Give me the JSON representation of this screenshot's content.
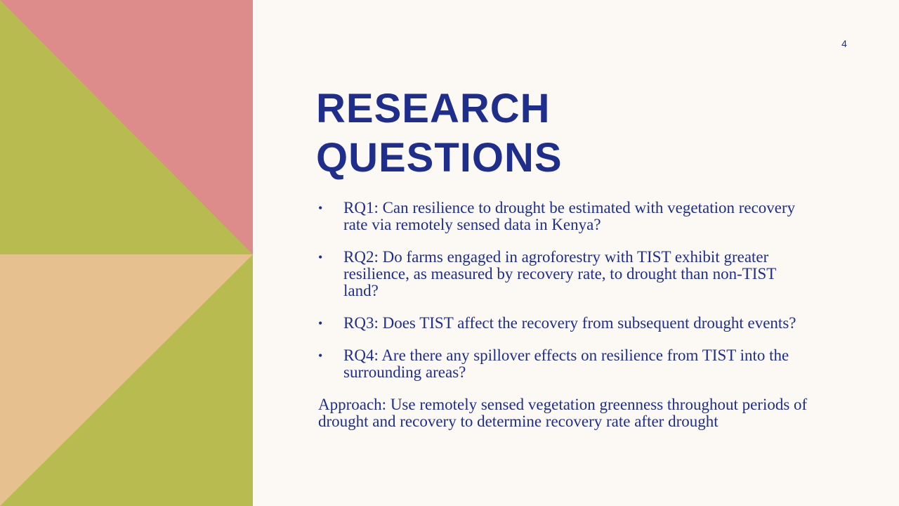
{
  "slide": {
    "number": "4",
    "title_lines": [
      "RESEARCH",
      "QUESTIONS"
    ],
    "questions": [
      "RQ1: Can resilience to drought be estimated with vegetation recovery rate via remotely sensed data in Kenya?",
      "RQ2: Do farms engaged in agroforestry with TIST exhibit greater resilience, as measured by recovery rate, to drought than non-TIST land?",
      "RQ3: Does TIST affect the recovery from subsequent drought events?",
      "RQ4: Are there any spillover effects on resilience from TIST into the surrounding areas?"
    ],
    "approach": "Approach: Use remotely sensed vegetation greenness throughout periods of drought and recovery to determine recovery rate after drought"
  },
  "colors": {
    "accent": "#1f2d8c",
    "pink": "#dd8b8b",
    "green": "#b8bc50",
    "peach": "#e6c08e",
    "background": "#fcf9f4"
  }
}
